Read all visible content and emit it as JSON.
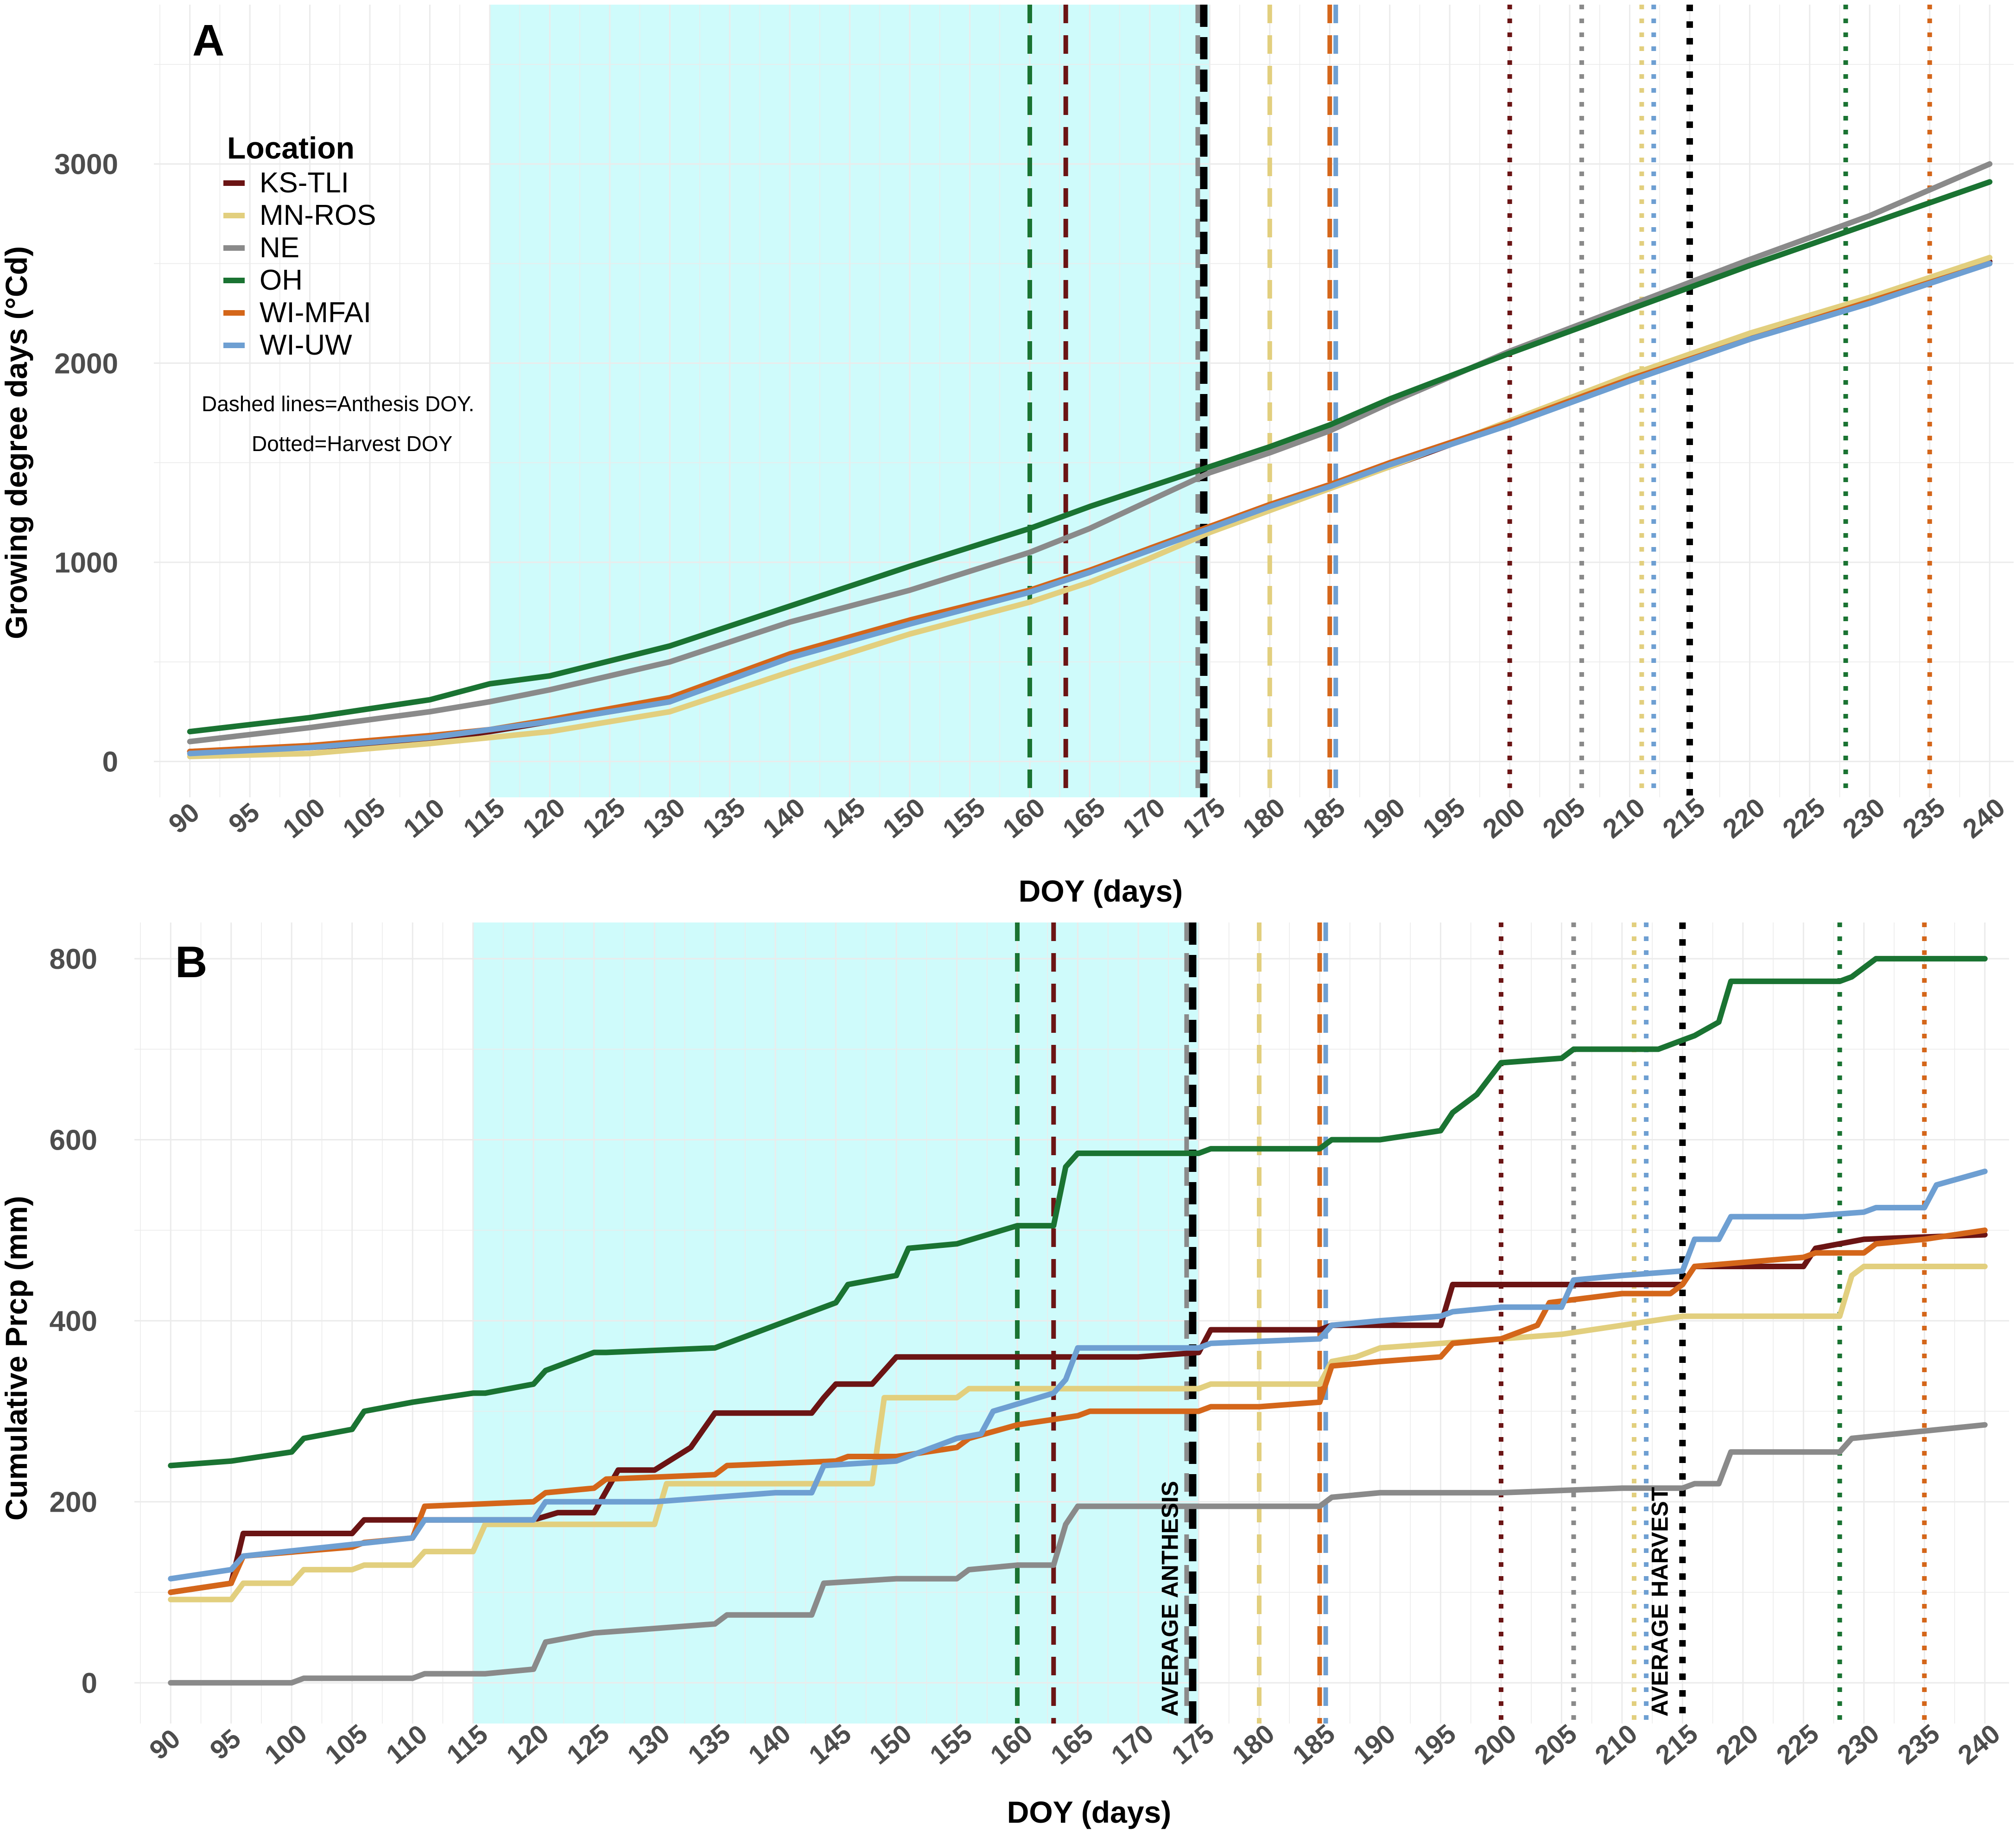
{
  "chart_data": [
    {
      "panel": "A",
      "type": "line",
      "xlabel": "DOY (days)",
      "ylabel": "Growing degree days (°Cd)",
      "xlim": [
        87,
        242
      ],
      "ylim": [
        -180,
        3800
      ],
      "xticks": [
        90,
        95,
        100,
        105,
        110,
        115,
        120,
        125,
        130,
        135,
        140,
        145,
        150,
        155,
        160,
        165,
        170,
        175,
        180,
        185,
        190,
        195,
        200,
        205,
        210,
        215,
        220,
        225,
        230,
        235,
        240
      ],
      "yticks": [
        0,
        1000,
        2000,
        3000
      ],
      "shaded_region": [
        115,
        175
      ],
      "legend": {
        "title": "Location",
        "notes": [
          "Dashed lines=Anthesis DOY.",
          "Dotted=Harvest DOY"
        ]
      },
      "series": [
        {
          "name": "KS-TLI",
          "color": "#6b1414",
          "x": [
            90,
            100,
            110,
            115,
            120,
            130,
            140,
            150,
            160,
            165,
            170,
            175,
            180,
            185,
            190,
            200,
            210,
            220,
            230,
            240
          ],
          "y": [
            50,
            70,
            110,
            150,
            200,
            300,
            530,
            700,
            850,
            950,
            1070,
            1180,
            1280,
            1380,
            1480,
            1700,
            1920,
            2130,
            2310,
            2510
          ]
        },
        {
          "name": "MN-ROS",
          "color": "#e2cf7e",
          "x": [
            90,
            100,
            110,
            115,
            120,
            130,
            140,
            150,
            160,
            165,
            170,
            175,
            180,
            185,
            190,
            200,
            210,
            220,
            230,
            240
          ],
          "y": [
            25,
            40,
            90,
            120,
            150,
            250,
            450,
            640,
            800,
            900,
            1020,
            1150,
            1260,
            1370,
            1480,
            1710,
            1940,
            2150,
            2330,
            2530
          ]
        },
        {
          "name": "NE",
          "color": "#8a8a8a",
          "x": [
            90,
            100,
            110,
            115,
            120,
            130,
            140,
            150,
            160,
            165,
            170,
            175,
            180,
            185,
            190,
            200,
            210,
            220,
            230,
            240
          ],
          "y": [
            100,
            170,
            250,
            300,
            360,
            500,
            700,
            860,
            1050,
            1170,
            1310,
            1450,
            1550,
            1660,
            1800,
            2060,
            2290,
            2520,
            2740,
            3000
          ]
        },
        {
          "name": "OH",
          "color": "#1a7332",
          "x": [
            90,
            100,
            110,
            115,
            120,
            130,
            140,
            150,
            160,
            165,
            170,
            175,
            180,
            185,
            190,
            200,
            210,
            220,
            230,
            240
          ],
          "y": [
            150,
            220,
            310,
            390,
            430,
            580,
            780,
            980,
            1170,
            1280,
            1380,
            1480,
            1580,
            1690,
            1820,
            2050,
            2270,
            2490,
            2700,
            2910
          ]
        },
        {
          "name": "WI-MFAI",
          "color": "#d4661a",
          "x": [
            90,
            100,
            110,
            115,
            120,
            130,
            140,
            150,
            160,
            165,
            170,
            175,
            180,
            185,
            190,
            200,
            210,
            220,
            230,
            240
          ],
          "y": [
            50,
            80,
            130,
            160,
            210,
            320,
            540,
            710,
            860,
            960,
            1070,
            1180,
            1290,
            1390,
            1500,
            1700,
            1920,
            2120,
            2310,
            2500
          ]
        },
        {
          "name": "WI-UW",
          "color": "#6e9fd2",
          "x": [
            90,
            100,
            110,
            115,
            120,
            130,
            140,
            150,
            160,
            165,
            170,
            175,
            180,
            185,
            190,
            200,
            210,
            220,
            230,
            240
          ],
          "y": [
            40,
            70,
            120,
            160,
            200,
            300,
            520,
            690,
            850,
            950,
            1060,
            1170,
            1280,
            1380,
            1490,
            1690,
            1910,
            2120,
            2300,
            2500
          ]
        }
      ],
      "anthesis_doy": [
        {
          "site": "OH",
          "doy": 160,
          "color": "#1a7332"
        },
        {
          "site": "KS-TLI",
          "doy": 163,
          "color": "#6b1414"
        },
        {
          "site": "NE",
          "doy": 174,
          "color": "#8a8a8a"
        },
        {
          "site": "AVERAGE",
          "doy": 174.5,
          "color": "#000000"
        },
        {
          "site": "MN-ROS",
          "doy": 180,
          "color": "#e2cf7e"
        },
        {
          "site": "WI-MFAI",
          "doy": 185,
          "color": "#d4661a"
        },
        {
          "site": "WI-UW",
          "doy": 185.5,
          "color": "#6e9fd2"
        }
      ],
      "harvest_doy": [
        {
          "site": "KS-TLI",
          "doy": 200,
          "color": "#6b1414"
        },
        {
          "site": "NE",
          "doy": 206,
          "color": "#8a8a8a"
        },
        {
          "site": "MN-ROS",
          "doy": 211,
          "color": "#e2cf7e"
        },
        {
          "site": "WI-UW",
          "doy": 212,
          "color": "#6e9fd2"
        },
        {
          "site": "AVERAGE",
          "doy": 215,
          "color": "#000000"
        },
        {
          "site": "OH",
          "doy": 228,
          "color": "#1a7332"
        },
        {
          "site": "WI-MFAI",
          "doy": 235,
          "color": "#d4661a"
        }
      ]
    },
    {
      "panel": "B",
      "type": "line",
      "xlabel": "DOY (days)",
      "ylabel": "Cumulative Prcp (mm)",
      "xlim": [
        87,
        242
      ],
      "ylim": [
        -45,
        840
      ],
      "xticks": [
        90,
        95,
        100,
        105,
        110,
        115,
        120,
        125,
        130,
        135,
        140,
        145,
        150,
        155,
        160,
        165,
        170,
        175,
        180,
        185,
        190,
        195,
        200,
        205,
        210,
        215,
        220,
        225,
        230,
        235,
        240
      ],
      "yticks": [
        0,
        200,
        400,
        600,
        800
      ],
      "shaded_region": [
        115,
        175
      ],
      "annotations": [
        {
          "text": "AVERAGE ANTHESIS",
          "doy": 174.5
        },
        {
          "text": "AVERAGE HARVEST",
          "doy": 215
        }
      ],
      "series": [
        {
          "name": "KS-TLI",
          "color": "#6b1414",
          "x": [
            90,
            95,
            96,
            105,
            106,
            120,
            122,
            125,
            127,
            130,
            133,
            135,
            143,
            144,
            145,
            148,
            149,
            150,
            160,
            170,
            175,
            176,
            185,
            186,
            195,
            196,
            212,
            215,
            216,
            225,
            226,
            230,
            240
          ],
          "y": [
            100,
            110,
            165,
            165,
            180,
            180,
            188,
            188,
            235,
            235,
            260,
            298,
            298,
            315,
            330,
            330,
            345,
            360,
            360,
            360,
            365,
            390,
            390,
            395,
            395,
            440,
            440,
            440,
            460,
            460,
            480,
            490,
            495
          ]
        },
        {
          "name": "MN-ROS",
          "color": "#e2cf7e",
          "x": [
            90,
            95,
            96,
            100,
            101,
            105,
            106,
            110,
            111,
            115,
            116,
            130,
            131,
            148,
            149,
            155,
            156,
            175,
            176,
            185,
            186,
            188,
            190,
            200,
            205,
            210,
            215,
            216,
            228,
            229,
            230,
            240
          ],
          "y": [
            92,
            92,
            110,
            110,
            125,
            125,
            130,
            130,
            145,
            145,
            175,
            175,
            220,
            220,
            315,
            315,
            325,
            325,
            330,
            330,
            355,
            360,
            370,
            380,
            385,
            395,
            405,
            405,
            405,
            450,
            460,
            460
          ]
        },
        {
          "name": "NE",
          "color": "#8a8a8a",
          "x": [
            90,
            100,
            101,
            110,
            111,
            115,
            116,
            120,
            121,
            125,
            130,
            135,
            136,
            143,
            144,
            150,
            155,
            156,
            160,
            163,
            164,
            165,
            175,
            185,
            186,
            190,
            200,
            210,
            215,
            216,
            218,
            219,
            228,
            229,
            240
          ],
          "y": [
            0,
            0,
            5,
            5,
            10,
            10,
            10,
            15,
            45,
            55,
            60,
            65,
            75,
            75,
            110,
            115,
            115,
            125,
            130,
            130,
            175,
            195,
            195,
            195,
            205,
            210,
            210,
            215,
            215,
            220,
            220,
            255,
            255,
            270,
            285
          ]
        },
        {
          "name": "OH",
          "color": "#1a7332",
          "x": [
            90,
            95,
            100,
            101,
            105,
            106,
            110,
            115,
            116,
            120,
            121,
            125,
            126,
            135,
            140,
            145,
            146,
            150,
            151,
            155,
            160,
            163,
            164,
            165,
            175,
            176,
            185,
            186,
            190,
            195,
            196,
            198,
            200,
            205,
            206,
            213,
            215,
            216,
            218,
            219,
            228,
            229,
            231,
            240
          ],
          "y": [
            240,
            245,
            255,
            270,
            280,
            300,
            310,
            320,
            320,
            330,
            345,
            365,
            365,
            370,
            395,
            420,
            440,
            450,
            480,
            485,
            505,
            505,
            570,
            585,
            585,
            590,
            590,
            600,
            600,
            610,
            630,
            650,
            685,
            690,
            700,
            700,
            710,
            715,
            730,
            775,
            775,
            780,
            800,
            800
          ]
        },
        {
          "name": "WI-MFAI",
          "color": "#d4661a",
          "x": [
            90,
            95,
            96,
            105,
            106,
            110,
            111,
            120,
            121,
            125,
            126,
            135,
            136,
            145,
            146,
            150,
            155,
            156,
            160,
            165,
            166,
            175,
            176,
            180,
            185,
            186,
            190,
            195,
            196,
            200,
            203,
            204,
            210,
            214,
            215,
            216,
            225,
            226,
            230,
            231,
            235,
            240
          ],
          "y": [
            100,
            110,
            140,
            150,
            155,
            160,
            195,
            200,
            210,
            215,
            225,
            230,
            240,
            245,
            250,
            250,
            260,
            270,
            285,
            295,
            300,
            300,
            305,
            305,
            310,
            350,
            355,
            360,
            375,
            380,
            395,
            420,
            430,
            430,
            440,
            460,
            470,
            475,
            475,
            485,
            490,
            500
          ]
        },
        {
          "name": "WI-UW",
          "color": "#6e9fd2",
          "x": [
            90,
            95,
            96,
            110,
            111,
            115,
            120,
            121,
            130,
            135,
            140,
            143,
            144,
            150,
            153,
            155,
            157,
            158,
            163,
            164,
            165,
            175,
            176,
            185,
            186,
            190,
            195,
            196,
            200,
            205,
            206,
            210,
            215,
            216,
            218,
            219,
            225,
            230,
            231,
            235,
            236,
            240
          ],
          "y": [
            115,
            125,
            140,
            160,
            180,
            180,
            180,
            200,
            200,
            205,
            210,
            210,
            240,
            245,
            260,
            270,
            275,
            300,
            320,
            335,
            370,
            370,
            375,
            380,
            395,
            400,
            405,
            410,
            415,
            415,
            445,
            450,
            455,
            490,
            490,
            515,
            515,
            520,
            525,
            525,
            550,
            565
          ]
        }
      ],
      "anthesis_doy": [
        {
          "site": "OH",
          "doy": 160,
          "color": "#1a7332"
        },
        {
          "site": "KS-TLI",
          "doy": 163,
          "color": "#6b1414"
        },
        {
          "site": "NE",
          "doy": 174,
          "color": "#8a8a8a"
        },
        {
          "site": "AVERAGE",
          "doy": 174.5,
          "color": "#000000"
        },
        {
          "site": "MN-ROS",
          "doy": 180,
          "color": "#e2cf7e"
        },
        {
          "site": "WI-MFAI",
          "doy": 185,
          "color": "#d4661a"
        },
        {
          "site": "WI-UW",
          "doy": 185.5,
          "color": "#6e9fd2"
        }
      ],
      "harvest_doy": [
        {
          "site": "KS-TLI",
          "doy": 200,
          "color": "#6b1414"
        },
        {
          "site": "NE",
          "doy": 206,
          "color": "#8a8a8a"
        },
        {
          "site": "MN-ROS",
          "doy": 211,
          "color": "#e2cf7e"
        },
        {
          "site": "WI-UW",
          "doy": 212,
          "color": "#6e9fd2"
        },
        {
          "site": "AVERAGE",
          "doy": 215,
          "color": "#000000"
        },
        {
          "site": "OH",
          "doy": 228,
          "color": "#1a7332"
        },
        {
          "site": "WI-MFAI",
          "doy": 235,
          "color": "#d4661a"
        }
      ]
    }
  ],
  "colors": {
    "shade": "#cffbfb",
    "grid": "#ebebeb",
    "tick_text": "#4d4d4d"
  }
}
